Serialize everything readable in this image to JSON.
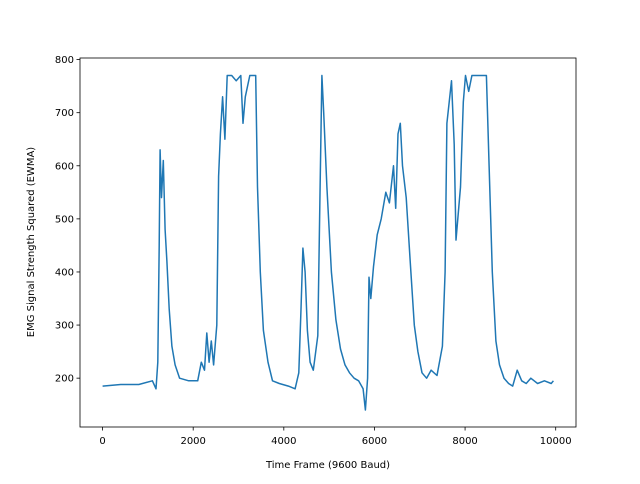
{
  "chart_data": {
    "type": "line",
    "xlabel": "Time Frame (9600 Baud)",
    "ylabel": "EMG Signal Strength Squared (EWMA)",
    "x": [
      0,
      400,
      800,
      1100,
      1180,
      1220,
      1250,
      1270,
      1300,
      1340,
      1380,
      1420,
      1470,
      1530,
      1600,
      1700,
      1900,
      2100,
      2180,
      2250,
      2300,
      2350,
      2400,
      2450,
      2520,
      2560,
      2600,
      2650,
      2700,
      2750,
      2850,
      2950,
      3050,
      3100,
      3150,
      3250,
      3380,
      3420,
      3480,
      3550,
      3650,
      3750,
      3900,
      4100,
      4250,
      4330,
      4380,
      4420,
      4470,
      4520,
      4580,
      4650,
      4750,
      4800,
      4840,
      4880,
      4950,
      5050,
      5150,
      5250,
      5350,
      5450,
      5550,
      5650,
      5750,
      5800,
      5850,
      5880,
      5920,
      5980,
      6060,
      6150,
      6250,
      6330,
      6420,
      6470,
      6520,
      6570,
      6620,
      6700,
      6790,
      6880,
      6960,
      7050,
      7150,
      7250,
      7380,
      7500,
      7560,
      7600,
      7650,
      7700,
      7760,
      7800,
      7900,
      7960,
      8010,
      8080,
      8150,
      8300,
      8470,
      8530,
      8600,
      8680,
      8760,
      8860,
      8960,
      9050,
      9150,
      9250,
      9350,
      9450,
      9600,
      9750,
      9900,
      9950
    ],
    "series": [
      {
        "color": "#1f77b4",
        "values": [
          185,
          188,
          188,
          195,
          180,
          230,
          450,
          630,
          540,
          610,
          480,
          420,
          330,
          260,
          225,
          200,
          195,
          195,
          230,
          215,
          285,
          230,
          270,
          225,
          300,
          580,
          660,
          730,
          650,
          770,
          770,
          760,
          770,
          680,
          730,
          770,
          770,
          560,
          400,
          290,
          230,
          195,
          190,
          185,
          180,
          210,
          330,
          445,
          400,
          290,
          230,
          215,
          280,
          560,
          770,
          700,
          560,
          400,
          310,
          255,
          225,
          210,
          200,
          195,
          180,
          140,
          200,
          390,
          350,
          410,
          470,
          500,
          550,
          530,
          600,
          520,
          660,
          680,
          600,
          540,
          420,
          300,
          250,
          210,
          200,
          215,
          205,
          260,
          400,
          680,
          720,
          760,
          640,
          460,
          560,
          720,
          770,
          740,
          770,
          770,
          770,
          600,
          400,
          270,
          225,
          200,
          190,
          185,
          215,
          195,
          190,
          200,
          190,
          195,
          190,
          195
        ]
      }
    ],
    "xlim": [
      -498,
      10448
    ],
    "ylim": [
      108,
      803
    ],
    "xticks": [
      0,
      2000,
      4000,
      6000,
      8000,
      10000
    ],
    "yticks": [
      200,
      300,
      400,
      500,
      600,
      700,
      800
    ]
  }
}
